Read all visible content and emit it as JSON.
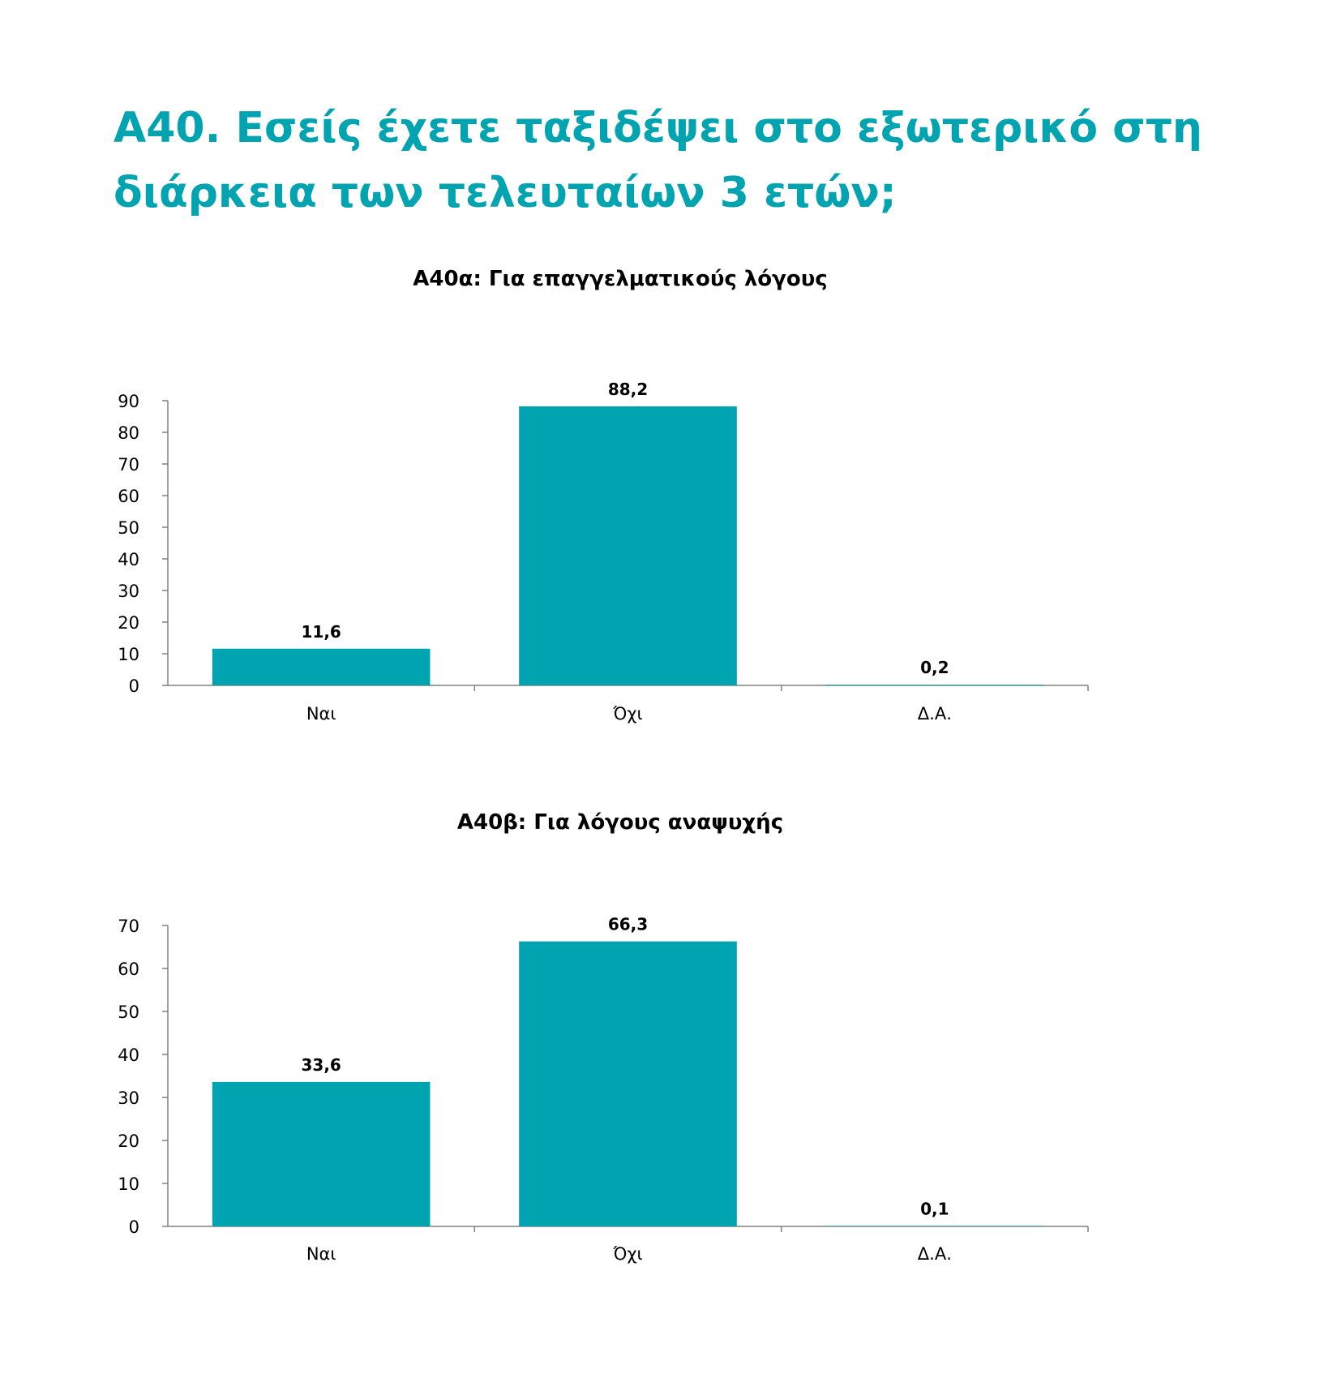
{
  "page_title": {
    "line1": "Α40. Εσείς έχετε ταξιδέψει στο εξωτερικό στη",
    "line2": "διάρκεια των τελευταίων 3 ετών;"
  },
  "colors": {
    "title": "#00A3B0",
    "bar": "#00A3B0",
    "axis": "#808080"
  },
  "chart_data": [
    {
      "type": "bar",
      "title": "Α40α: Για επαγγελματικούς λόγους",
      "categories": [
        "Ναι",
        "Όχι",
        "Δ.Α."
      ],
      "values": [
        11.6,
        88.2,
        0.2
      ],
      "value_labels": [
        "11,6",
        "88,2",
        "0,2"
      ],
      "ylim": [
        0,
        90
      ],
      "yticks": [
        0,
        10,
        20,
        30,
        40,
        50,
        60,
        70,
        80,
        90
      ],
      "xlabel": "",
      "ylabel": "",
      "grid": false,
      "legend": "none"
    },
    {
      "type": "bar",
      "title": "Α40β: Για λόγους αναψυχής",
      "categories": [
        "Ναι",
        "Όχι",
        "Δ.Α."
      ],
      "values": [
        33.6,
        66.3,
        0.1
      ],
      "value_labels": [
        "33,6",
        "66,3",
        "0,1"
      ],
      "ylim": [
        0,
        70
      ],
      "yticks": [
        0,
        10,
        20,
        30,
        40,
        50,
        60,
        70
      ],
      "xlabel": "",
      "ylabel": "",
      "grid": false,
      "legend": "none"
    }
  ]
}
